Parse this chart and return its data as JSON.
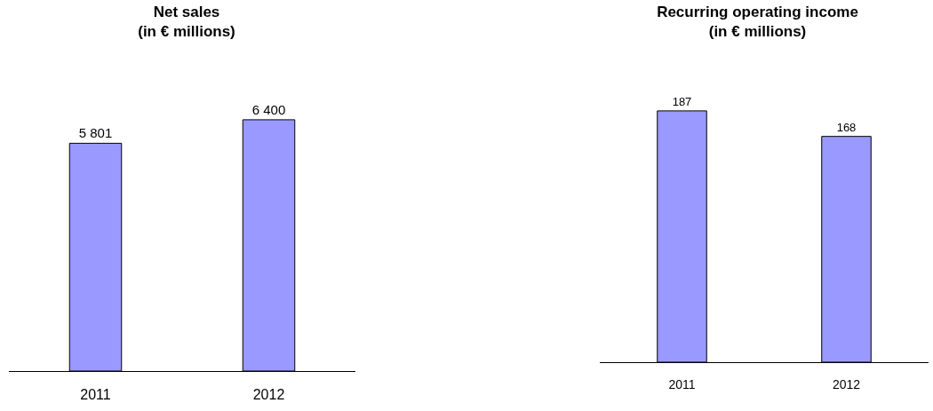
{
  "chart_data": [
    {
      "type": "bar",
      "title": "Net sales\n(in € millions)",
      "categories": [
        "2011",
        "2012"
      ],
      "values": [
        5801,
        6400
      ],
      "value_labels": [
        "5 801",
        "6 400"
      ],
      "color": "#9999ff"
    },
    {
      "type": "bar",
      "title": "Recurring operating income\n(in € millions)",
      "categories": [
        "2011",
        "2012"
      ],
      "values": [
        187,
        168
      ],
      "data_labels": true,
      "color": "#9999ff"
    }
  ]
}
